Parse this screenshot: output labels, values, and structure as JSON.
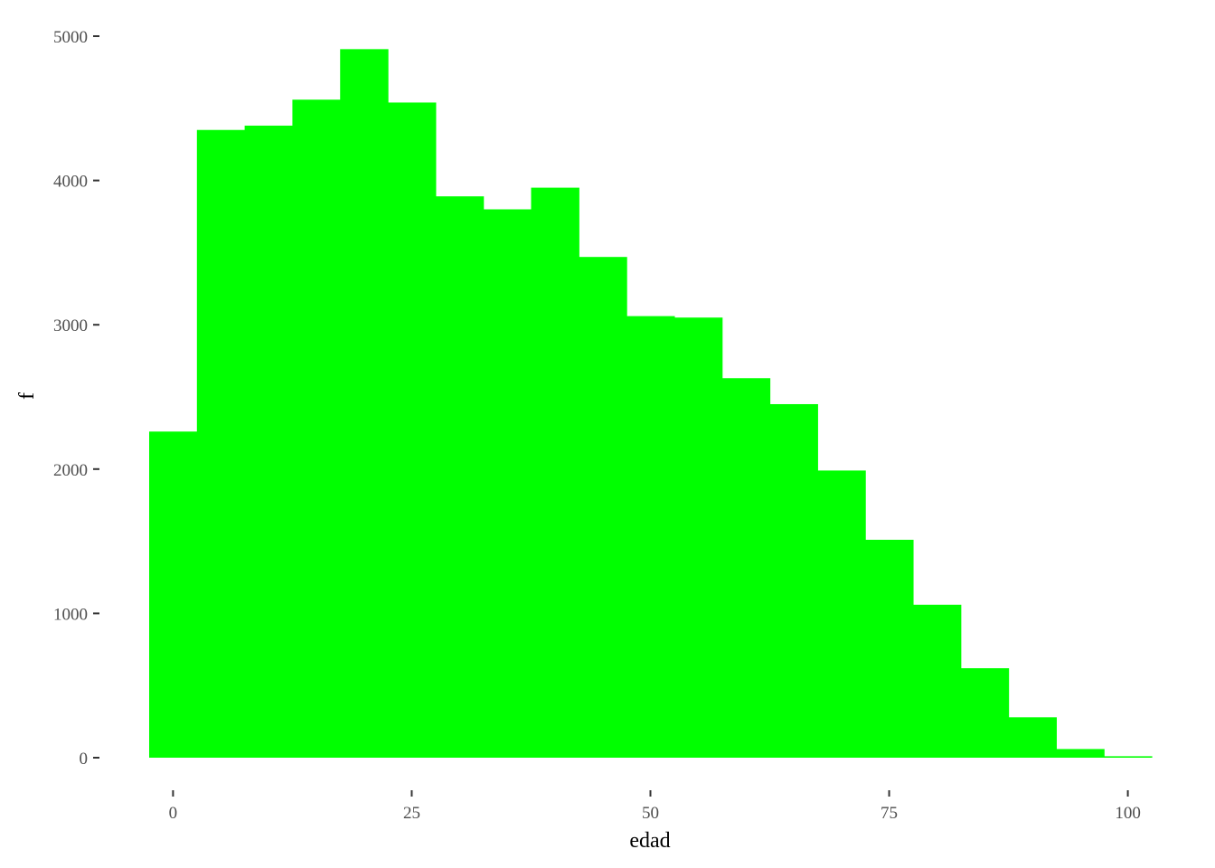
{
  "chart_data": {
    "type": "bar",
    "title": "",
    "xlabel": "edad",
    "ylabel": "f",
    "bin_width": 5,
    "bin_starts": [
      -2.5,
      2.5,
      7.5,
      12.5,
      17.5,
      22.5,
      27.5,
      32.5,
      37.5,
      42.5,
      47.5,
      52.5,
      57.5,
      62.5,
      67.5,
      72.5,
      77.5,
      82.5,
      87.5,
      92.5,
      97.5
    ],
    "values": [
      2260,
      4350,
      4380,
      4560,
      4910,
      4540,
      3890,
      3800,
      3950,
      3470,
      3060,
      3050,
      2630,
      2450,
      1990,
      1510,
      1060,
      620,
      280,
      60,
      10
    ],
    "xlim": [
      -2.5,
      102.5
    ],
    "ylim": [
      0,
      5000
    ],
    "x_ticks": [
      0,
      25,
      50,
      75,
      100
    ],
    "x_tick_labels": [
      "0",
      "25",
      "50",
      "75",
      "100"
    ],
    "y_ticks": [
      0,
      1000,
      2000,
      3000,
      4000,
      5000
    ],
    "y_tick_labels": [
      "0",
      "1000",
      "2000",
      "3000",
      "4000",
      "5000"
    ],
    "fill_color": "#00ff00",
    "grid": false,
    "legend": "none"
  }
}
